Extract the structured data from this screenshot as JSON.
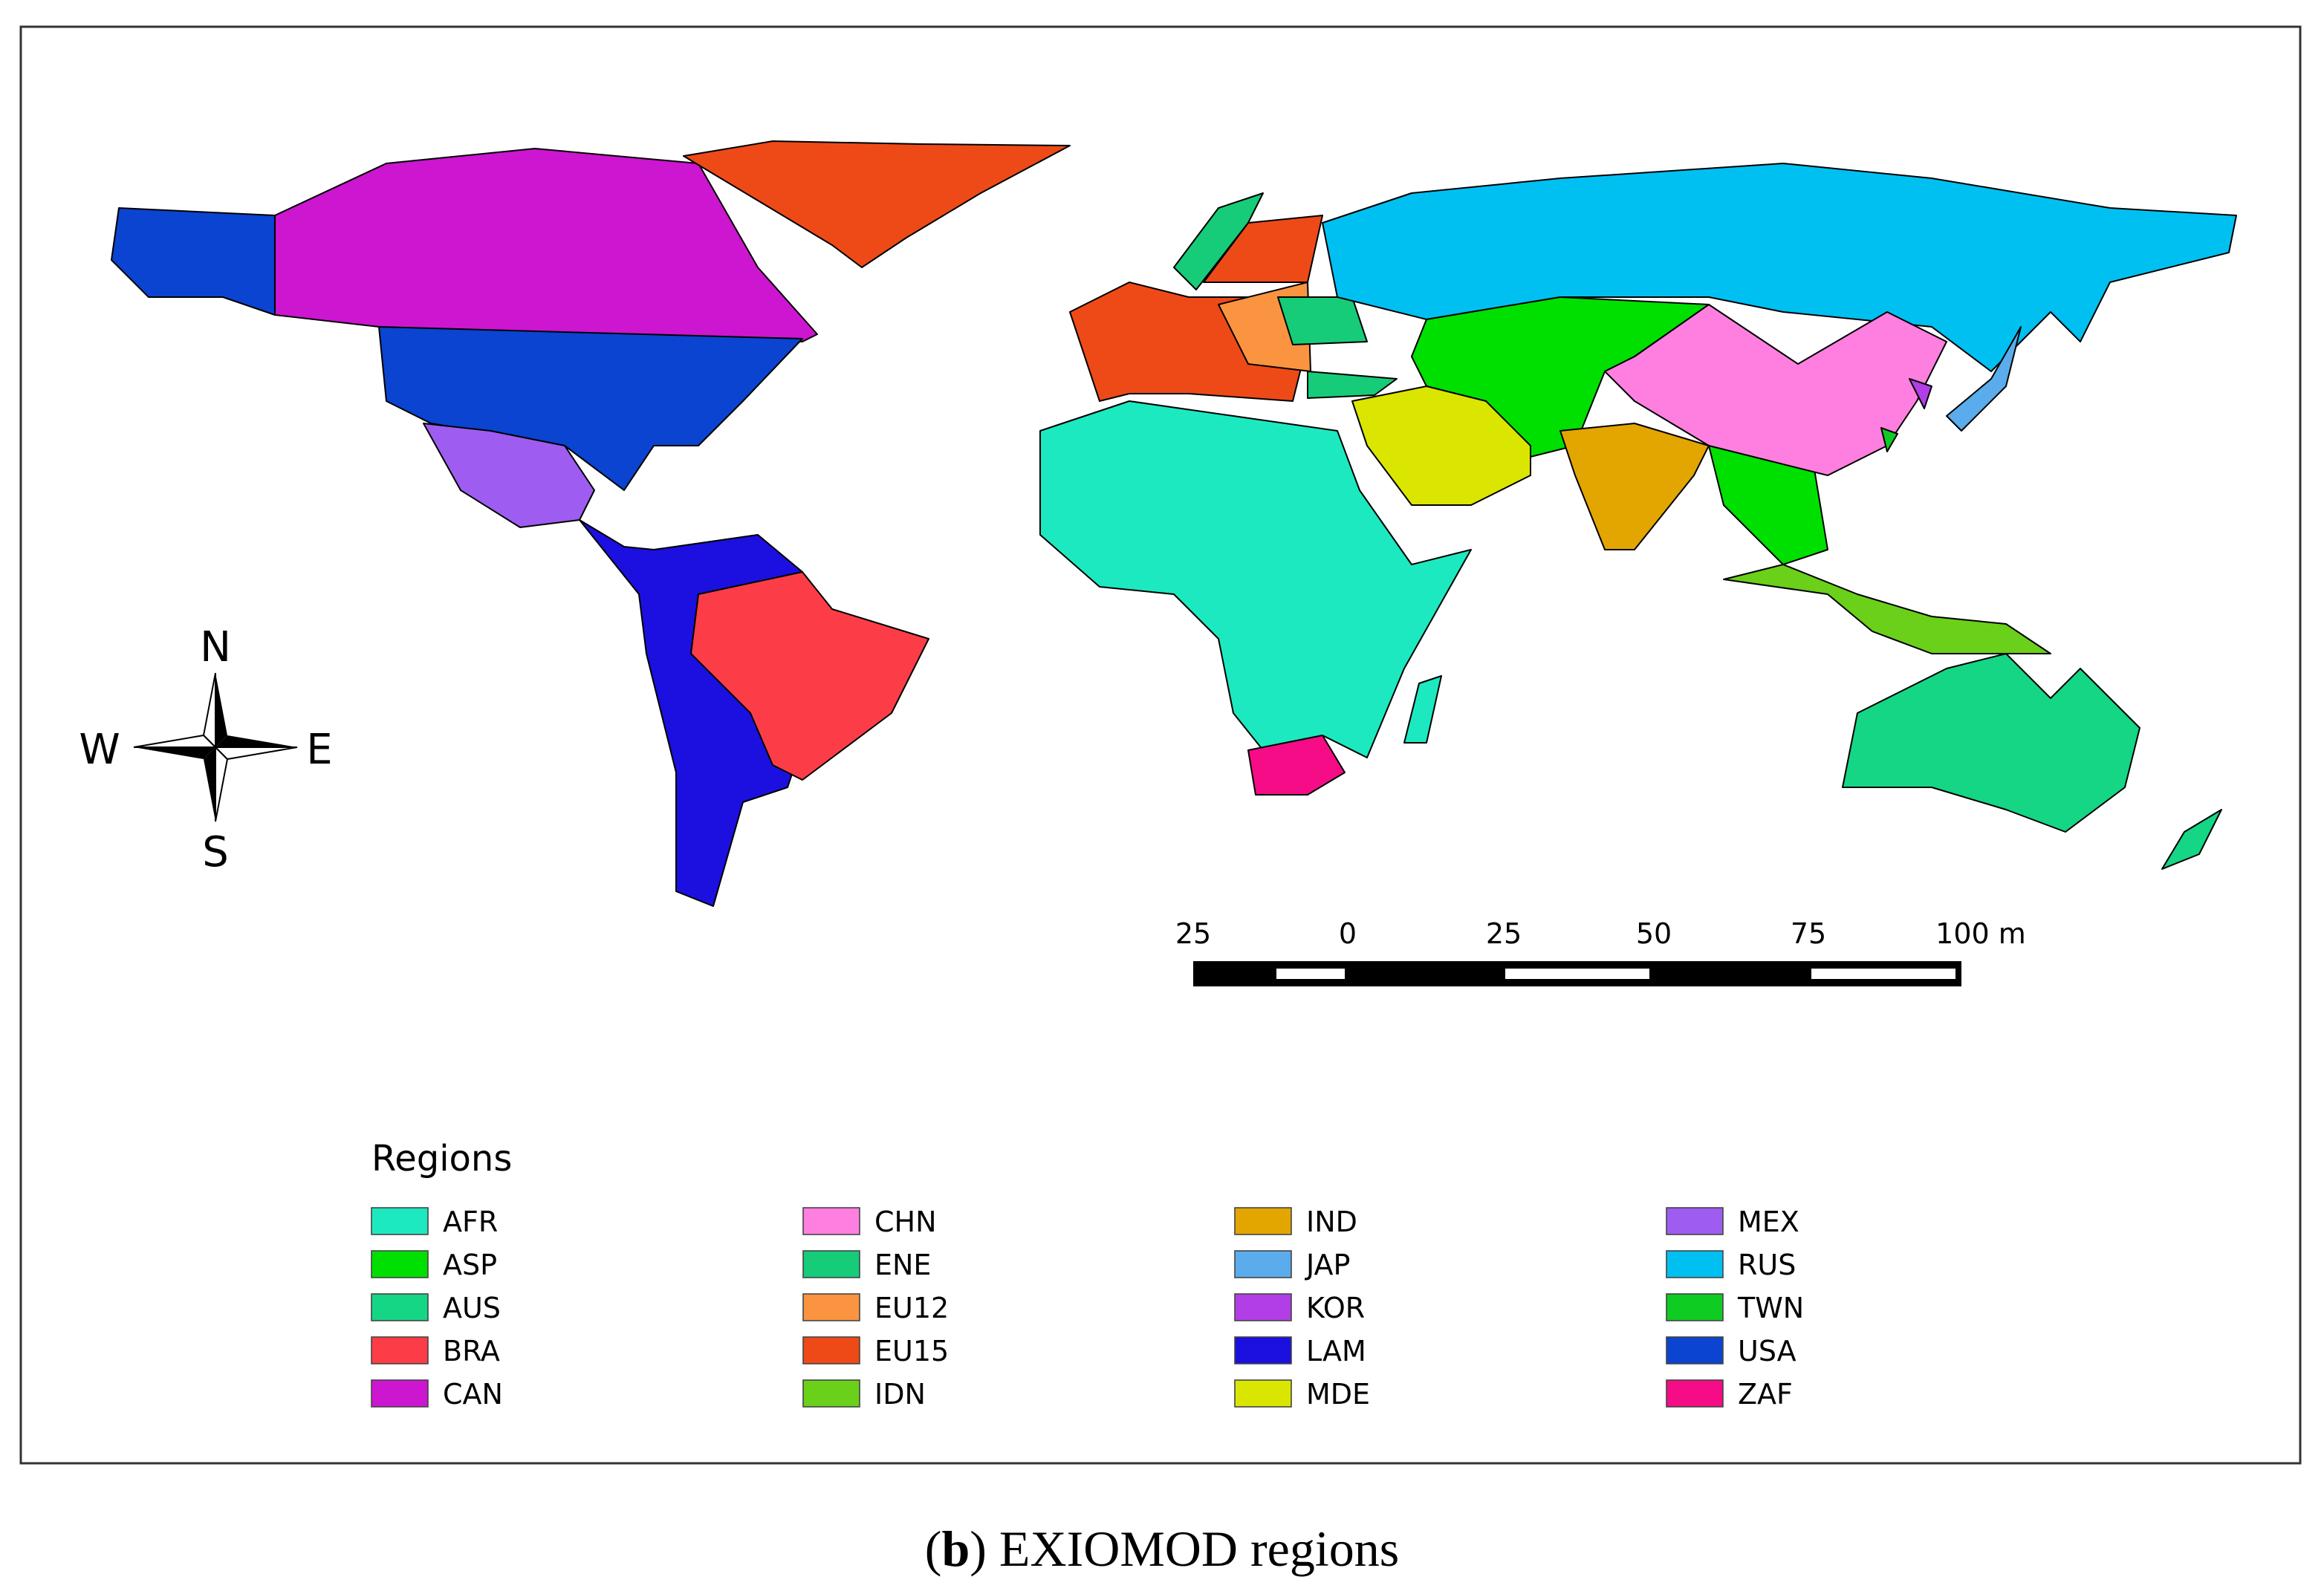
{
  "compass": {
    "north": "N",
    "west": "W",
    "east": "E",
    "south": "S"
  },
  "scale_bar": {
    "labels": [
      "25",
      "0",
      "25",
      "50",
      "75",
      "100 m"
    ]
  },
  "legend": {
    "title": "Regions",
    "entries": [
      {
        "name": "AFR",
        "color": "#1de9c0"
      },
      {
        "name": "ASP",
        "color": "#00e000"
      },
      {
        "name": "AUS",
        "color": "#14d684"
      },
      {
        "name": "BRA",
        "color": "#fc3d47"
      },
      {
        "name": "CAN",
        "color": "#cc16d0"
      },
      {
        "name": "CHN",
        "color": "#ff7fe0"
      },
      {
        "name": "ENE",
        "color": "#16cc78"
      },
      {
        "name": "EU12",
        "color": "#fb9440"
      },
      {
        "name": "EU15",
        "color": "#ee4a18"
      },
      {
        "name": "IDN",
        "color": "#6ad01a"
      },
      {
        "name": "IND",
        "color": "#e3a600"
      },
      {
        "name": "JAP",
        "color": "#5aacec"
      },
      {
        "name": "KOR",
        "color": "#b23ee8"
      },
      {
        "name": "LAM",
        "color": "#1c10e0"
      },
      {
        "name": "MDE",
        "color": "#dbe600"
      },
      {
        "name": "MEX",
        "color": "#9e5cf0"
      },
      {
        "name": "RUS",
        "color": "#00c0f2"
      },
      {
        "name": "TWN",
        "color": "#0ecc22"
      },
      {
        "name": "USA",
        "color": "#0a44d0"
      },
      {
        "name": "ZAF",
        "color": "#f50c86"
      }
    ]
  },
  "caption": {
    "open": "(",
    "letter": "b",
    "rest": ") EXIOMOD regions"
  }
}
